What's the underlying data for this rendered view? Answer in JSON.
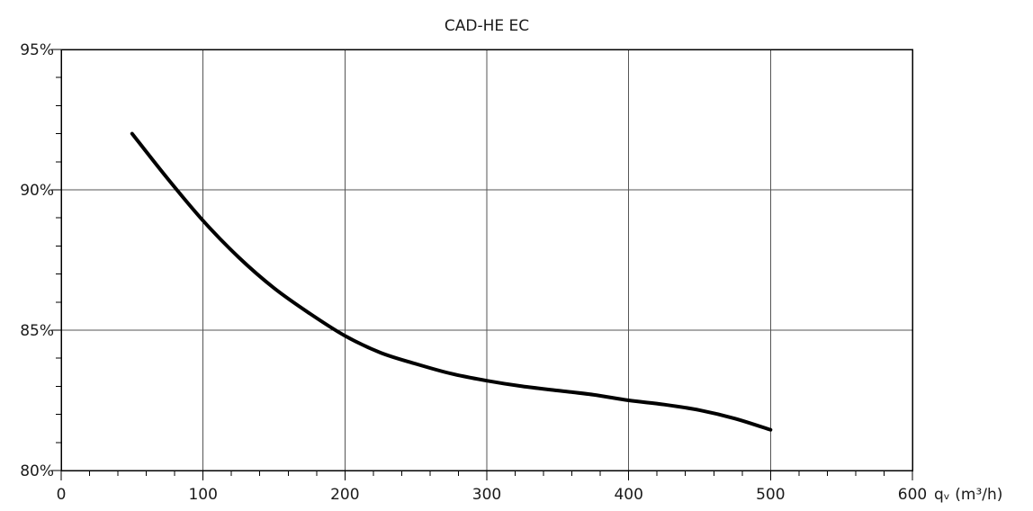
{
  "chart_data": {
    "type": "line",
    "title": "CAD-HE EC",
    "xlabel": "qᵥ (m³/h)",
    "ylabel": "",
    "xlim": [
      0,
      600
    ],
    "ylim": [
      80,
      95
    ],
    "x_ticks": [
      0,
      100,
      200,
      300,
      400,
      500,
      600
    ],
    "x_tick_labels": [
      "0",
      "100",
      "200",
      "300",
      "400",
      "500",
      "600"
    ],
    "y_ticks": [
      80,
      85,
      90,
      95
    ],
    "y_tick_labels": [
      "80%",
      "85%",
      "90%",
      "95%"
    ],
    "x_minor_step": 20,
    "y_minor_step": 1,
    "grid": true,
    "series": [
      {
        "color": "#000000",
        "x": [
          50,
          75,
          100,
          125,
          150,
          175,
          200,
          225,
          250,
          275,
          300,
          325,
          350,
          375,
          400,
          425,
          450,
          475,
          500
        ],
        "y": [
          92.0,
          90.4,
          88.9,
          87.6,
          86.5,
          85.6,
          84.8,
          84.2,
          83.8,
          83.45,
          83.2,
          83.0,
          82.85,
          82.7,
          82.5,
          82.35,
          82.15,
          81.85,
          81.45
        ]
      }
    ]
  }
}
